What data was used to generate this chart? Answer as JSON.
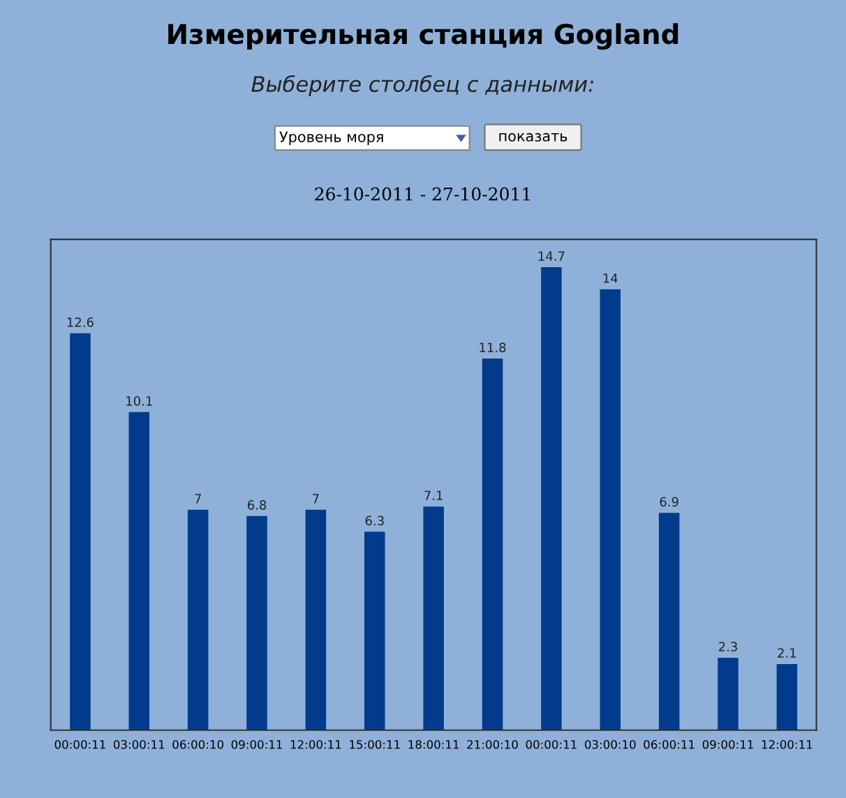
{
  "chart_data": {
    "type": "bar",
    "title": "Измерительная станция Gogland",
    "subtitle": "Выберите столбец с данными:",
    "annotations": [
      "Уровень моря",
      "показать",
      "26-10-2011 - 27-10-2011"
    ],
    "categories": [
      "00:00:11",
      "03:00:11",
      "06:00:10",
      "09:00:11",
      "12:00:11",
      "15:00:11",
      "18:00:11",
      "21:00:10",
      "00:00:11",
      "03:00:10",
      "06:00:11",
      "09:00:11",
      "12:00:11"
    ],
    "values": [
      12.6,
      10.1,
      7,
      6.8,
      7,
      6.3,
      7.1,
      11.8,
      14.7,
      14,
      6.9,
      2.3,
      2.1
    ],
    "color": "#023a8c",
    "data_labels": true,
    "grid": false,
    "legend": false
  }
}
